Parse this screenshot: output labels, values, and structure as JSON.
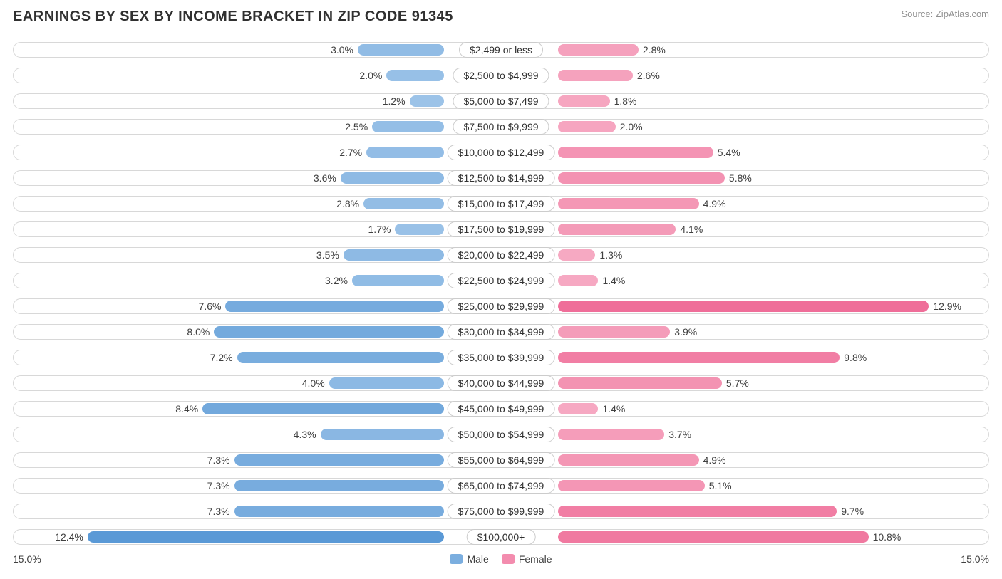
{
  "title": "EARNINGS BY SEX BY INCOME BRACKET IN ZIP CODE 91345",
  "source": "Source: ZipAtlas.com",
  "axis_max": 15.0,
  "axis_label_left": "15.0%",
  "axis_label_right": "15.0%",
  "legend": {
    "male": "Male",
    "female": "Female"
  },
  "colors": {
    "male_low": "#9cc3e8",
    "male_high": "#5a99d6",
    "female_low": "#f6a9c2",
    "female_high": "#ef6e99",
    "track_border": "#d8d8d8",
    "label_border": "#cccccc",
    "text": "#404040"
  },
  "rows": [
    {
      "label": "$2,499 or less",
      "male": 3.0,
      "female": 2.8
    },
    {
      "label": "$2,500 to $4,999",
      "male": 2.0,
      "female": 2.6
    },
    {
      "label": "$5,000 to $7,499",
      "male": 1.2,
      "female": 1.8
    },
    {
      "label": "$7,500 to $9,999",
      "male": 2.5,
      "female": 2.0
    },
    {
      "label": "$10,000 to $12,499",
      "male": 2.7,
      "female": 5.4
    },
    {
      "label": "$12,500 to $14,999",
      "male": 3.6,
      "female": 5.8
    },
    {
      "label": "$15,000 to $17,499",
      "male": 2.8,
      "female": 4.9
    },
    {
      "label": "$17,500 to $19,999",
      "male": 1.7,
      "female": 4.1
    },
    {
      "label": "$20,000 to $22,499",
      "male": 3.5,
      "female": 1.3
    },
    {
      "label": "$22,500 to $24,999",
      "male": 3.2,
      "female": 1.4
    },
    {
      "label": "$25,000 to $29,999",
      "male": 7.6,
      "female": 12.9
    },
    {
      "label": "$30,000 to $34,999",
      "male": 8.0,
      "female": 3.9
    },
    {
      "label": "$35,000 to $39,999",
      "male": 7.2,
      "female": 9.8
    },
    {
      "label": "$40,000 to $44,999",
      "male": 4.0,
      "female": 5.7
    },
    {
      "label": "$45,000 to $49,999",
      "male": 8.4,
      "female": 1.4
    },
    {
      "label": "$50,000 to $54,999",
      "male": 4.3,
      "female": 3.7
    },
    {
      "label": "$55,000 to $64,999",
      "male": 7.3,
      "female": 4.9
    },
    {
      "label": "$65,000 to $74,999",
      "male": 7.3,
      "female": 5.1
    },
    {
      "label": "$75,000 to $99,999",
      "male": 7.3,
      "female": 9.7
    },
    {
      "label": "$100,000+",
      "male": 12.4,
      "female": 10.8
    }
  ]
}
